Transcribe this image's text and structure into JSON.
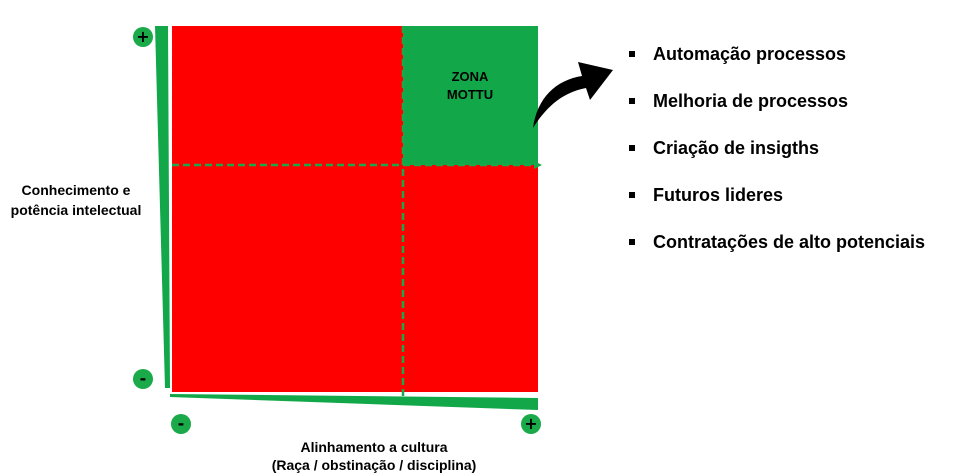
{
  "diagram": {
    "y_axis_label": [
      "Conhecimento e",
      "potência intelectual"
    ],
    "x_axis_label": [
      "Alinhamento a cultura",
      "(Raça / obstinação / disciplina)"
    ],
    "zone_label": [
      "ZONA",
      "MOTTU"
    ],
    "y_axis_high_sign": "+",
    "y_axis_low_sign": "-",
    "x_axis_low_sign": "-",
    "x_axis_high_sign": "+",
    "colors": {
      "low_zone": "#ff0000",
      "target_zone": "#12a84a",
      "axis_wedge": "#12a84a",
      "divider": "#1aa84a",
      "arrow": "#000000"
    }
  },
  "bullets": [
    "Automação processos",
    "Melhoria de processos",
    "Criação de insigths",
    "Futuros lideres",
    "Contratações de alto potenciais"
  ]
}
